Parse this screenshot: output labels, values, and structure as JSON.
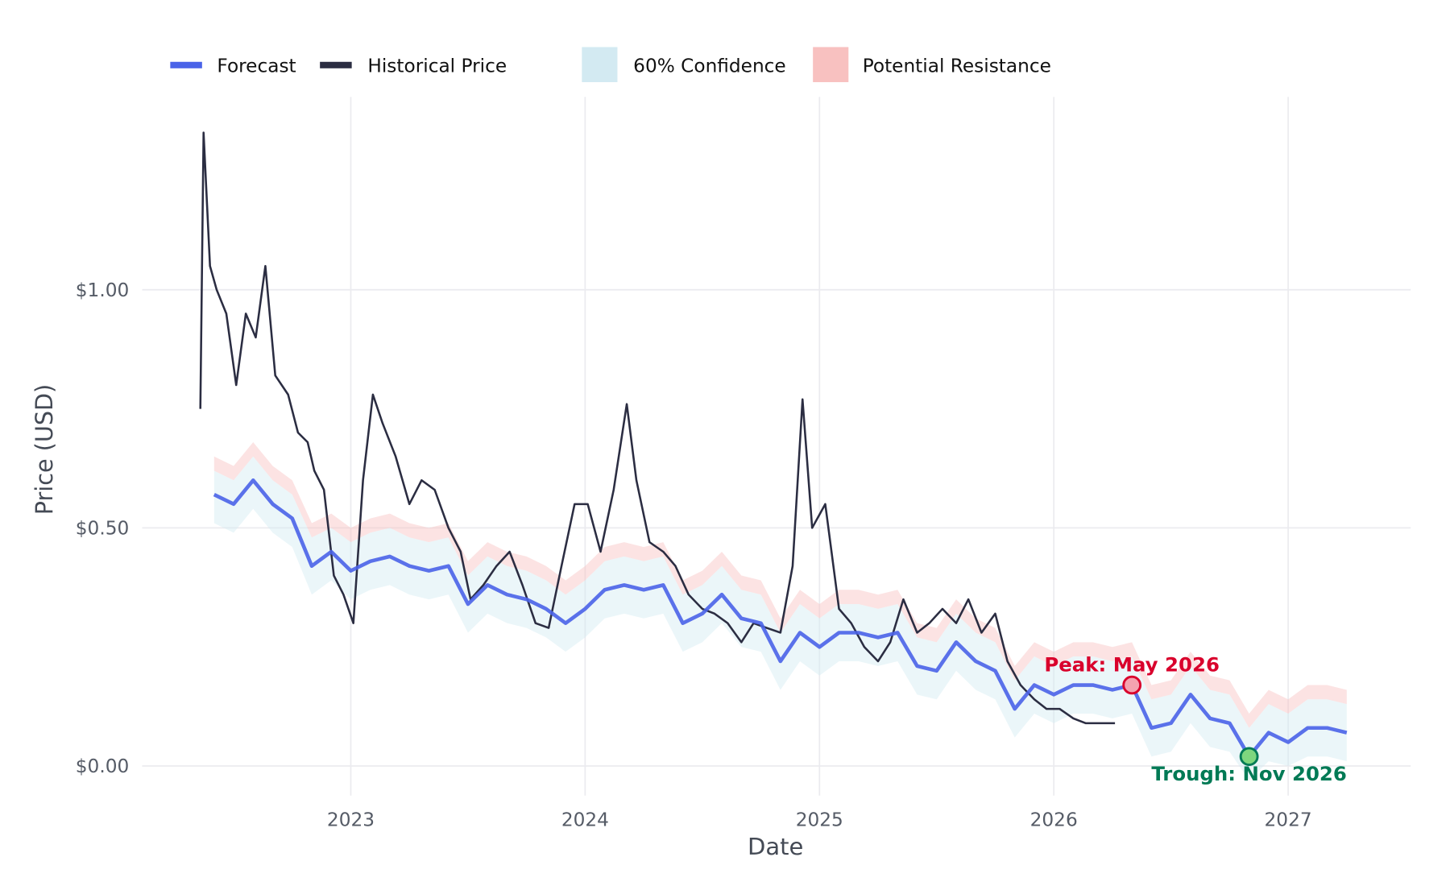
{
  "chart_data": {
    "type": "line",
    "title": "",
    "xlabel": "Date",
    "ylabel": "Price (USD)",
    "xlim": [
      "2022-03",
      "2027-07"
    ],
    "ylim": [
      -0.06,
      1.4
    ],
    "grid": true,
    "legend_placement": "top-left",
    "x_ticks": [
      "2023",
      "2024",
      "2025",
      "2026",
      "2027"
    ],
    "y_ticks": [
      {
        "value": 0,
        "label": "$0.00"
      },
      {
        "value": 0.5,
        "label": "$0.50"
      },
      {
        "value": 1.0,
        "label": "$1.00"
      }
    ],
    "legend": [
      {
        "label": "Forecast",
        "kind": "line",
        "color": "#4a63e8"
      },
      {
        "label": "Historical Price",
        "kind": "line",
        "color": "#2b2d42"
      },
      {
        "label": "60% Confidence",
        "kind": "area",
        "color": "#d3eaf2"
      },
      {
        "label": "Potential Resistance",
        "kind": "area",
        "color": "#f8c1c0"
      }
    ],
    "historical": {
      "name": "Historical Price",
      "dates": [
        "2022-05-10",
        "2022-05-15",
        "2022-05-25",
        "2022-06-05",
        "2022-06-20",
        "2022-07-05",
        "2022-07-20",
        "2022-08-05",
        "2022-08-20",
        "2022-09-05",
        "2022-09-25",
        "2022-10-10",
        "2022-10-25",
        "2022-11-05",
        "2022-11-20",
        "2022-12-05",
        "2022-12-20",
        "2023-01-05",
        "2023-01-20",
        "2023-02-05",
        "2023-02-20",
        "2023-03-10",
        "2023-04-01",
        "2023-04-20",
        "2023-05-10",
        "2023-06-01",
        "2023-06-20",
        "2023-07-05",
        "2023-07-25",
        "2023-08-15",
        "2023-09-05",
        "2023-09-25",
        "2023-10-15",
        "2023-11-05",
        "2023-11-25",
        "2023-12-15",
        "2024-01-05",
        "2024-01-25",
        "2024-02-15",
        "2024-03-05",
        "2024-03-20",
        "2024-04-10",
        "2024-05-01",
        "2024-05-20",
        "2024-06-10",
        "2024-07-01",
        "2024-07-20",
        "2024-08-10",
        "2024-09-01",
        "2024-09-20",
        "2024-10-10",
        "2024-11-01",
        "2024-11-20",
        "2024-12-05",
        "2024-12-20",
        "2025-01-10",
        "2025-02-01",
        "2025-02-20",
        "2025-03-10",
        "2025-04-01",
        "2025-04-20",
        "2025-05-10",
        "2025-06-01",
        "2025-06-20",
        "2025-07-10",
        "2025-08-01",
        "2025-08-20",
        "2025-09-10",
        "2025-10-01",
        "2025-10-20",
        "2025-11-10",
        "2025-12-01",
        "2025-12-20",
        "2026-01-10",
        "2026-02-01",
        "2026-02-20",
        "2026-03-10",
        "2026-04-05"
      ],
      "values": [
        0.75,
        1.33,
        1.05,
        1.0,
        0.95,
        0.8,
        0.95,
        0.9,
        1.05,
        0.82,
        0.78,
        0.7,
        0.68,
        0.62,
        0.58,
        0.4,
        0.36,
        0.3,
        0.6,
        0.78,
        0.72,
        0.65,
        0.55,
        0.6,
        0.58,
        0.5,
        0.45,
        0.35,
        0.38,
        0.42,
        0.45,
        0.38,
        0.3,
        0.29,
        0.42,
        0.55,
        0.55,
        0.45,
        0.58,
        0.76,
        0.6,
        0.47,
        0.45,
        0.42,
        0.36,
        0.33,
        0.32,
        0.3,
        0.26,
        0.3,
        0.29,
        0.28,
        0.42,
        0.77,
        0.5,
        0.55,
        0.33,
        0.3,
        0.25,
        0.22,
        0.26,
        0.35,
        0.28,
        0.3,
        0.33,
        0.3,
        0.35,
        0.28,
        0.32,
        0.22,
        0.17,
        0.14,
        0.12,
        0.12,
        0.1,
        0.09,
        0.09,
        0.09
      ],
      "color": "#2b2d42"
    },
    "forecast": {
      "name": "Forecast",
      "dates": [
        "2022-06",
        "2022-07",
        "2022-08",
        "2022-09",
        "2022-10",
        "2022-11",
        "2022-12",
        "2023-01",
        "2023-02",
        "2023-03",
        "2023-04",
        "2023-05",
        "2023-06",
        "2023-07",
        "2023-08",
        "2023-09",
        "2023-10",
        "2023-11",
        "2023-12",
        "2024-01",
        "2024-02",
        "2024-03",
        "2024-04",
        "2024-05",
        "2024-06",
        "2024-07",
        "2024-08",
        "2024-09",
        "2024-10",
        "2024-11",
        "2024-12",
        "2025-01",
        "2025-02",
        "2025-03",
        "2025-04",
        "2025-05",
        "2025-06",
        "2025-07",
        "2025-08",
        "2025-09",
        "2025-10",
        "2025-11",
        "2025-12",
        "2026-01",
        "2026-02",
        "2026-03",
        "2026-04",
        "2026-05",
        "2026-06",
        "2026-07",
        "2026-08",
        "2026-09",
        "2026-10",
        "2026-11",
        "2026-12",
        "2027-01",
        "2027-02",
        "2027-03",
        "2027-04"
      ],
      "values": [
        0.57,
        0.55,
        0.6,
        0.55,
        0.52,
        0.42,
        0.45,
        0.41,
        0.43,
        0.44,
        0.42,
        0.41,
        0.42,
        0.34,
        0.38,
        0.36,
        0.35,
        0.33,
        0.3,
        0.33,
        0.37,
        0.38,
        0.37,
        0.38,
        0.3,
        0.32,
        0.36,
        0.31,
        0.3,
        0.22,
        0.28,
        0.25,
        0.28,
        0.28,
        0.27,
        0.28,
        0.21,
        0.2,
        0.26,
        0.22,
        0.2,
        0.12,
        0.17,
        0.15,
        0.17,
        0.17,
        0.16,
        0.17,
        0.08,
        0.09,
        0.15,
        0.1,
        0.09,
        0.02,
        0.07,
        0.05,
        0.08,
        0.08,
        0.07
      ],
      "conf_lower": [
        0.51,
        0.49,
        0.54,
        0.49,
        0.46,
        0.36,
        0.39,
        0.35,
        0.37,
        0.38,
        0.36,
        0.35,
        0.36,
        0.28,
        0.32,
        0.3,
        0.29,
        0.27,
        0.24,
        0.27,
        0.31,
        0.32,
        0.31,
        0.32,
        0.24,
        0.26,
        0.3,
        0.25,
        0.24,
        0.16,
        0.22,
        0.19,
        0.22,
        0.22,
        0.21,
        0.22,
        0.15,
        0.14,
        0.2,
        0.16,
        0.14,
        0.06,
        0.11,
        0.09,
        0.11,
        0.11,
        0.1,
        0.11,
        0.02,
        0.03,
        0.09,
        0.04,
        0.03,
        -0.03,
        0.01,
        0.0,
        0.02,
        0.02,
        0.01
      ],
      "conf_upper": [
        0.62,
        0.6,
        0.65,
        0.6,
        0.57,
        0.48,
        0.5,
        0.47,
        0.49,
        0.5,
        0.48,
        0.47,
        0.48,
        0.4,
        0.44,
        0.42,
        0.41,
        0.39,
        0.36,
        0.39,
        0.43,
        0.44,
        0.43,
        0.44,
        0.36,
        0.38,
        0.42,
        0.37,
        0.36,
        0.28,
        0.34,
        0.31,
        0.34,
        0.34,
        0.33,
        0.34,
        0.27,
        0.26,
        0.32,
        0.28,
        0.26,
        0.18,
        0.23,
        0.21,
        0.23,
        0.23,
        0.22,
        0.23,
        0.14,
        0.15,
        0.21,
        0.16,
        0.15,
        0.08,
        0.13,
        0.11,
        0.14,
        0.14,
        0.13
      ],
      "resistance_upper": [
        0.65,
        0.63,
        0.68,
        0.63,
        0.6,
        0.51,
        0.53,
        0.5,
        0.52,
        0.53,
        0.51,
        0.5,
        0.51,
        0.43,
        0.47,
        0.45,
        0.44,
        0.42,
        0.39,
        0.42,
        0.46,
        0.47,
        0.46,
        0.47,
        0.39,
        0.41,
        0.45,
        0.4,
        0.39,
        0.31,
        0.37,
        0.34,
        0.37,
        0.37,
        0.36,
        0.37,
        0.3,
        0.29,
        0.35,
        0.31,
        0.29,
        0.21,
        0.26,
        0.24,
        0.26,
        0.26,
        0.25,
        0.26,
        0.17,
        0.18,
        0.24,
        0.19,
        0.18,
        0.11,
        0.16,
        0.14,
        0.17,
        0.17,
        0.16
      ],
      "color": "#4a63e8"
    },
    "annotations": [
      {
        "label": "Peak: May 2026",
        "date": "2026-05",
        "value": 0.17,
        "color": "#d9002c",
        "marker_fill": "#f4a3b0"
      },
      {
        "label": "Trough: Nov 2026",
        "date": "2026-11",
        "value": 0.02,
        "color": "#007a55",
        "marker_fill": "#7ed67e"
      }
    ]
  }
}
